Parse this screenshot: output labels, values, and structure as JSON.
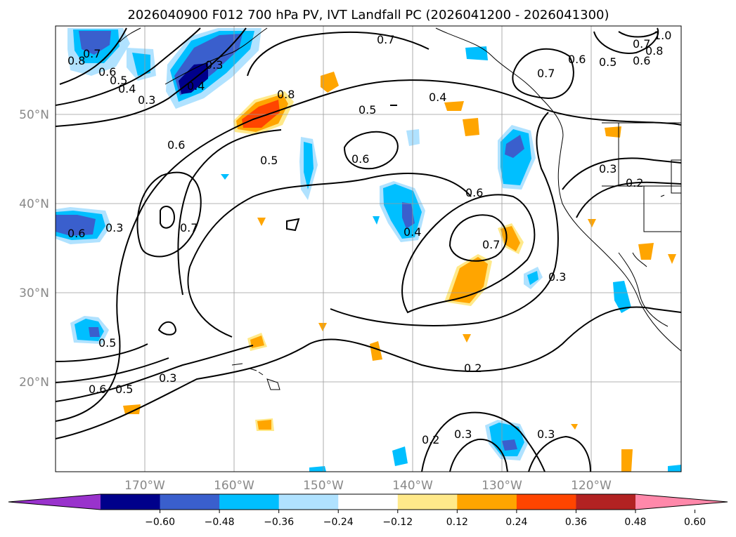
{
  "title": "2026040900 F012 700 hPa PV, IVT Landfall PC (2026041200 - 2026041300)",
  "latitude_labels": [
    "50°N",
    "40°N",
    "30°N",
    "20°N"
  ],
  "longitude_labels": [
    "170°W",
    "160°W",
    "150°W",
    "140°W",
    "130°W",
    "120°W"
  ],
  "colorbar": {
    "ticks": [
      "−0.60",
      "−0.48",
      "−0.36",
      "−0.24",
      "−0.12",
      "0.12",
      "0.24",
      "0.36",
      "0.48",
      "0.60"
    ],
    "colors": [
      "#9932cc",
      "#00008b",
      "#3a5fcd",
      "#00bfff",
      "#b0e2ff",
      "#ffffff",
      "#ffe98a",
      "#ffa500",
      "#ff4500",
      "#b22222",
      "#ff88aa"
    ],
    "extend": "both"
  },
  "contour_labels": [
    "0.8",
    "0.7",
    "0.6",
    "0.5",
    "0.4",
    "0.3",
    "0.4",
    "0.3",
    "0.8",
    "0.7",
    "0.5",
    "0.4",
    "0.7",
    "0.6",
    "0.5",
    "0.6",
    "1.0",
    "0.8",
    "0.7",
    "0.6",
    "0.5",
    "0.6",
    "0.6",
    "0.7",
    "0.3",
    "0.4",
    "0.6",
    "0.7",
    "0.3",
    "0.2",
    "0.3",
    "0.5",
    "0.5",
    "0.6",
    "0.3",
    "0.2",
    "0.2",
    "0.3",
    "0.3"
  ],
  "colors": {
    "grid": "#9a9a9a",
    "contour": "#000000",
    "axis_label": "#888888"
  }
}
